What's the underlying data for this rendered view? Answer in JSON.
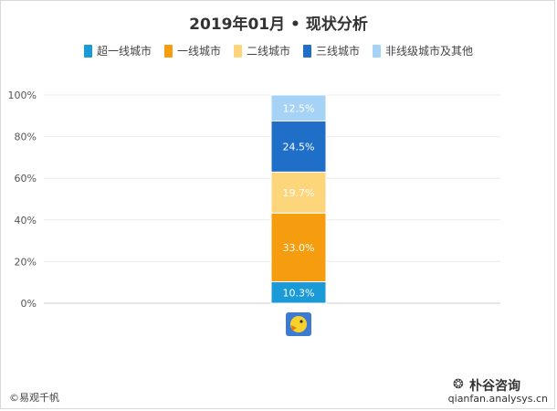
{
  "chart_data": {
    "type": "bar",
    "stacked": true,
    "title": "2019年01月 • 现状分析",
    "categories": [
      ""
    ],
    "series": [
      {
        "name": "超一线城市",
        "values": [
          10.3
        ],
        "label": "10.3%",
        "color": "#1a9ad6"
      },
      {
        "name": "一线城市",
        "values": [
          33.0
        ],
        "label": "33.0%",
        "color": "#f59d0e"
      },
      {
        "name": "二线城市",
        "values": [
          19.7
        ],
        "label": "19.7%",
        "color": "#fdd57a"
      },
      {
        "name": "三线城市",
        "values": [
          24.5
        ],
        "label": "24.5%",
        "color": "#1f6fc9"
      },
      {
        "name": "非线级城市及其他",
        "values": [
          12.5
        ],
        "label": "12.5%",
        "color": "#a6d3f5"
      }
    ],
    "yticks": [
      "0%",
      "20%",
      "40%",
      "60%",
      "80%",
      "100%"
    ],
    "ylim": [
      0,
      100
    ],
    "grid": true,
    "legend_position": "top"
  },
  "footer": {
    "source": "©易观千帆",
    "watermark_name": "朴谷咨询",
    "watermark_url": "qianfan.analysys.cn"
  },
  "icons": {
    "category_icon": "app-logo-icon",
    "watermark_icon": "wechat-icon"
  }
}
